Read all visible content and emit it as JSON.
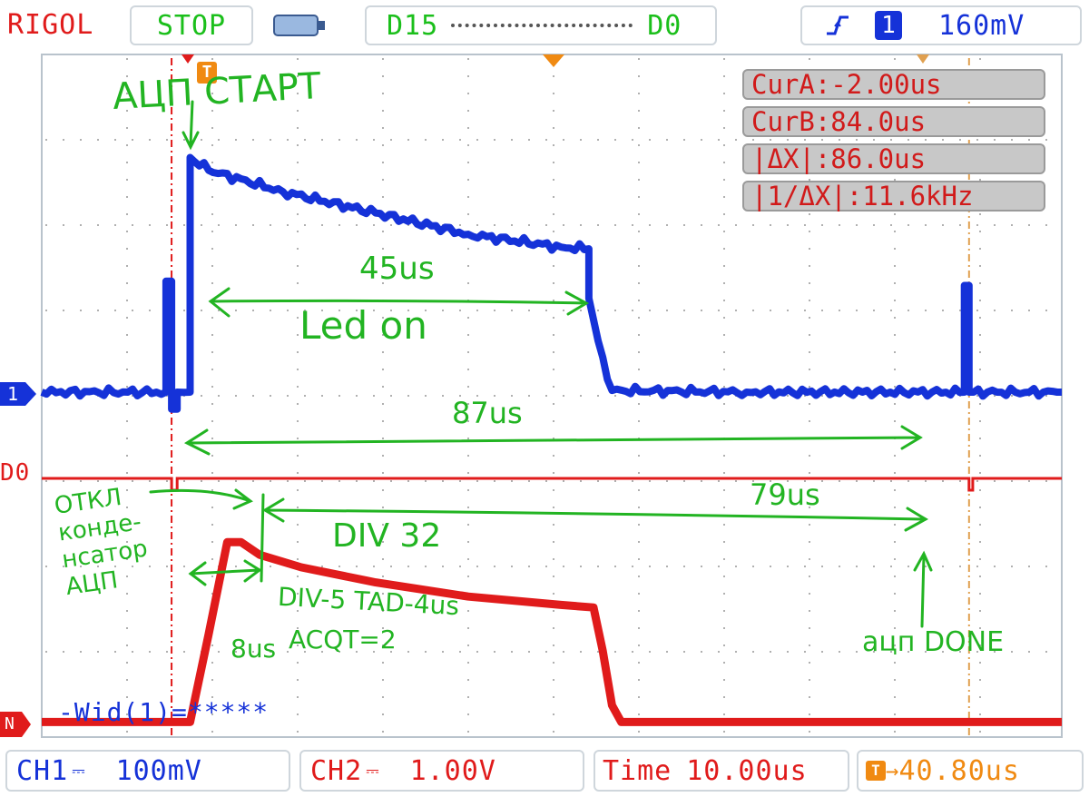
{
  "header": {
    "brand": "RIGOL",
    "run_state": "STOP",
    "digital_range_start": "D15",
    "digital_range_end": "D0",
    "trigger_channel": "1",
    "trigger_level": "160mV",
    "icons": [
      "battery-icon",
      "trigger-edge-icon"
    ]
  },
  "footer": {
    "ch1_label": "CH1",
    "ch1_scale": "100mV",
    "ch2_label": "CH2",
    "ch2_scale": "1.00V",
    "time_label": "Time",
    "time_scale": "10.00us",
    "trigger_offset": "40.80us"
  },
  "measurements": {
    "cur_a": "CurA:-2.00us",
    "cur_b": "CurB:84.0us",
    "delta_x": "|ΔX|:86.0us",
    "inv_delta_x": "|1/ΔX|:11.6kHz"
  },
  "markers": {
    "ch1": "1",
    "d0": "D0",
    "ch2": "N",
    "trigger": "T"
  },
  "measure_label": "-Wid(1)=*****",
  "annotations": {
    "adc_start": "АЦП СТАРТ",
    "width_45": "45us",
    "led_on": "Led on",
    "width_87": "87us",
    "width_79": "79us",
    "div32": "DIV 32",
    "cap_off": "ОТКЛ\nконде-\nнсатор\nАЦП",
    "div5": "DIV-5 TAD-4us",
    "acqt": "ACQT=2",
    "t8us": "8us",
    "adc_done": "ацп DONE"
  },
  "colors": {
    "ch1": "#1532d8",
    "ch2": "#e01b1b",
    "d0": "#e01b1b",
    "notes": "#22b422",
    "cursor_a": "#e01b1b",
    "cursor_b": "#e0a050"
  },
  "chart_data": {
    "type": "line",
    "x_unit": "us",
    "time_per_div": 10,
    "xlim": [
      -16,
      94
    ],
    "cursor_a_us": -2.0,
    "cursor_b_us": 84.0,
    "series": [
      {
        "name": "CH1",
        "x": [
          -16,
          -2.6,
          -2.6,
          -2.0,
          -2.0,
          -1.4,
          -1.4,
          0.0,
          0.0,
          2.0,
          2.0,
          10.0,
          20.0,
          30.0,
          40.0,
          43.0,
          43.0,
          44.0,
          45.0,
          45.5,
          60.0,
          80.0,
          83.5,
          83.5,
          84.0,
          84.0,
          84.5,
          84.5,
          94.0
        ],
        "y": [
          0.0,
          0.0,
          1.3,
          1.3,
          -0.2,
          -0.2,
          0.0,
          0.0,
          2.75,
          2.6,
          2.6,
          2.35,
          2.1,
          1.85,
          1.7,
          1.68,
          1.1,
          0.6,
          0.15,
          0.02,
          0.0,
          0.0,
          0.0,
          1.25,
          1.25,
          0.0,
          0.0,
          0.0,
          0.0
        ]
      },
      {
        "name": "CH2",
        "x": [
          -16,
          0.0,
          2.0,
          4.0,
          5.5,
          7.5,
          12.0,
          20.0,
          30.0,
          40.0,
          43.5,
          44.5,
          45.5,
          46.5,
          48.0,
          94.0
        ],
        "y": [
          0.05,
          0.05,
          1.1,
          2.2,
          2.2,
          2.05,
          1.9,
          1.72,
          1.55,
          1.45,
          1.42,
          0.9,
          0.25,
          0.05,
          0.05,
          0.05
        ]
      },
      {
        "name": "D0",
        "x": [
          -16,
          -2.0,
          -2.0,
          -1.4,
          -1.4,
          84.0,
          84.0,
          84.4,
          84.4,
          94.0
        ],
        "y": [
          1,
          1,
          0,
          0,
          1,
          1,
          0,
          0,
          1,
          1
        ]
      }
    ]
  }
}
